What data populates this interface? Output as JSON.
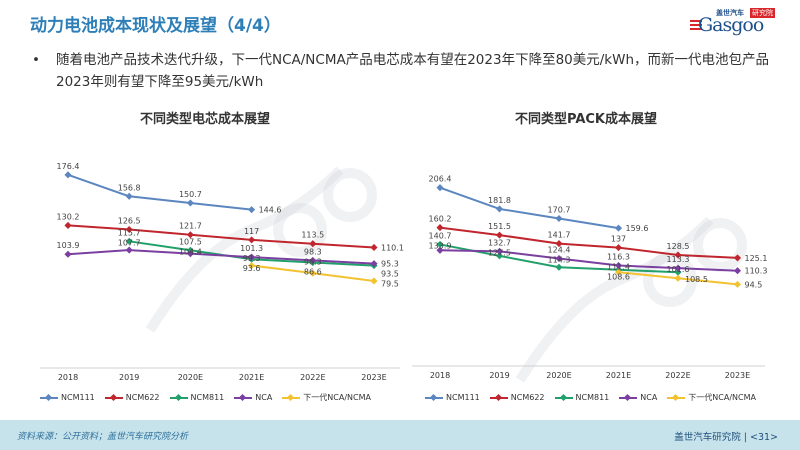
{
  "header": {
    "title": "动力电池成本现状及展望（4/4）",
    "logo_cn": "盖世汽车",
    "logo_badge": "研究院",
    "logo_word": "Gasgoo"
  },
  "bullet": {
    "marker": "•",
    "text": "随着电池产品技术迭代升级，下一代NCA/NCMA产品电芯成本有望在2023年下降至80美元/kWh，而新一代电池包产品2023年则有望下降至95美元/kWh"
  },
  "watermark": "Gasgoo",
  "chart_data": [
    {
      "type": "line",
      "title": "不同类型电芯成本展望",
      "categories": [
        "2018",
        "2019",
        "2020E",
        "2021E",
        "2022E",
        "2023E"
      ],
      "ylim": [
        0,
        200
      ],
      "grid": false,
      "legend": "bottom",
      "series": [
        {
          "name": "NCM111",
          "color": "#5b86c0",
          "values": [
            176.4,
            156.8,
            150.7,
            144.6,
            null,
            null
          ]
        },
        {
          "name": "NCM622",
          "color": "#c0262d",
          "values": [
            130.2,
            126.5,
            121.7,
            117,
            113.5,
            110.1
          ]
        },
        {
          "name": "NCM811",
          "color": "#22a06b",
          "values": [
            null,
            115.7,
            107.5,
            99.3,
            96.3,
            93.5
          ]
        },
        {
          "name": "NCA",
          "color": "#7a3fa0",
          "values": [
            103.9,
            107.7,
            104.4,
            101.3,
            98.3,
            95.3
          ]
        },
        {
          "name": "下一代NCA/NCMA",
          "color": "#f2c230",
          "values": [
            null,
            null,
            null,
            93.6,
            86.6,
            79.5
          ]
        }
      ]
    },
    {
      "type": "line",
      "title": "不同类型PACK成本展望",
      "categories": [
        "2018",
        "2019",
        "2020E",
        "2021E",
        "2022E",
        "2023E"
      ],
      "ylim": [
        0,
        250
      ],
      "grid": false,
      "legend": "bottom",
      "series": [
        {
          "name": "NCM111",
          "color": "#5b86c0",
          "values": [
            206.4,
            181.8,
            170.7,
            159.6,
            null,
            null
          ]
        },
        {
          "name": "NCM622",
          "color": "#c0262d",
          "values": [
            160.2,
            151.5,
            141.7,
            137,
            128.5,
            125.1
          ]
        },
        {
          "name": "NCM811",
          "color": "#22a06b",
          "values": [
            140.7,
            127.5,
            114.3,
            111.4,
            108.5,
            null
          ]
        },
        {
          "name": "NCA",
          "color": "#7a3fa0",
          "values": [
            133.9,
            132.7,
            124.4,
            116.3,
            113.3,
            110.3
          ]
        },
        {
          "name": "下一代NCA/NCMA",
          "color": "#f2c230",
          "values": [
            null,
            null,
            null,
            108.6,
            101.6,
            94.5
          ]
        }
      ]
    }
  ],
  "footer": {
    "source": "资料来源：公开资料；盖世汽车研究院分析",
    "org": "盖世汽车研究院",
    "page": "<31>"
  }
}
